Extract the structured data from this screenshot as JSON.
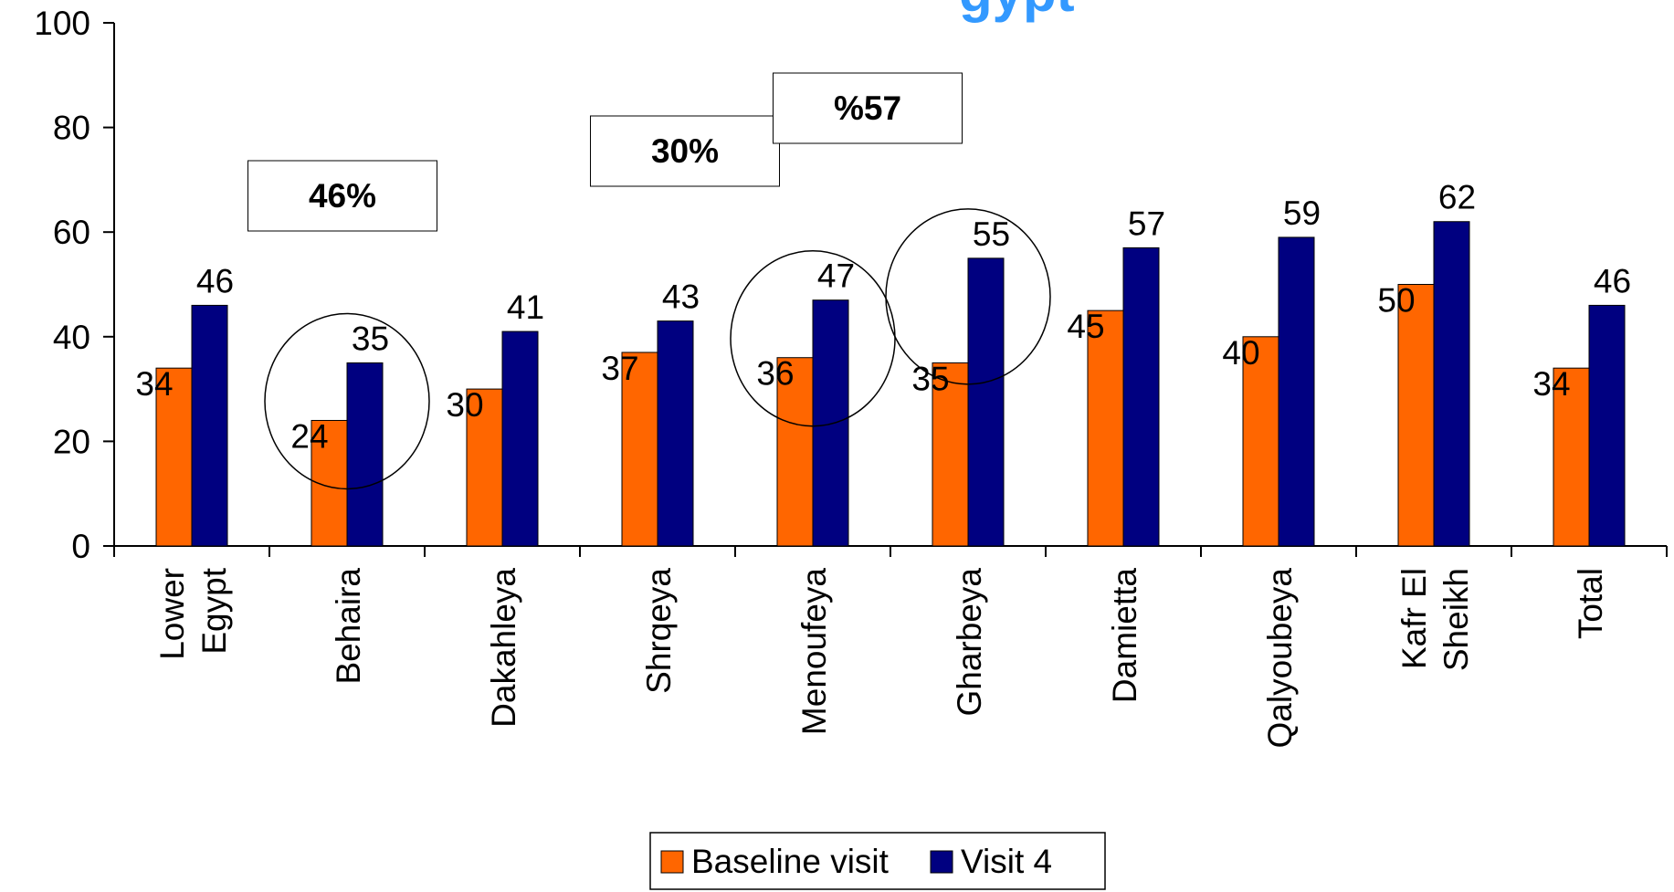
{
  "chart_data": {
    "type": "bar",
    "title": "gypt",
    "title_color": "#3399ff",
    "categories": [
      [
        "Lower",
        "Egypt"
      ],
      [
        "Behaira"
      ],
      [
        "Dakahleya"
      ],
      [
        "Shrqeya"
      ],
      [
        "Menoufeya"
      ],
      [
        "Gharbeya"
      ],
      [
        "Damietta"
      ],
      [
        "Qalyoubeya"
      ],
      [
        "Kafr El",
        "Sheikh"
      ],
      [
        "Total"
      ]
    ],
    "series": [
      {
        "name": "Baseline visit",
        "color": "#ff6600",
        "values": [
          34,
          24,
          30,
          37,
          36,
          35,
          45,
          40,
          50,
          34
        ]
      },
      {
        "name": "Visit 4",
        "color": "#000080",
        "values": [
          46,
          35,
          41,
          43,
          47,
          55,
          57,
          59,
          62,
          46
        ]
      }
    ],
    "ylim": [
      0,
      100
    ],
    "yticks": [
      0,
      20,
      40,
      60,
      80,
      100
    ],
    "xlabel": "",
    "ylabel": "",
    "grid": false,
    "legend_position": "bottom",
    "annotations": [
      {
        "text": "46%",
        "category_index": 1
      },
      {
        "text": "30%",
        "category_index": 4
      },
      {
        "text": "%57",
        "category_index": 5
      }
    ],
    "highlight_circles": [
      {
        "category_index": 1
      },
      {
        "category_index": 4
      },
      {
        "category_index": 5
      }
    ]
  }
}
